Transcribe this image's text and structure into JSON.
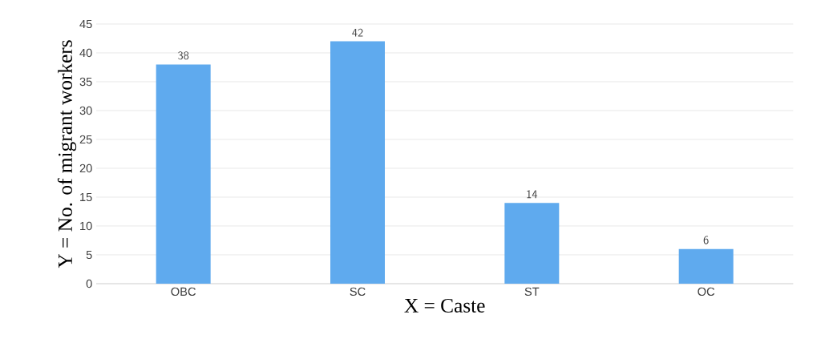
{
  "chart_data": {
    "type": "bar",
    "xlabel": "X = Caste",
    "ylabel": "Y = No. of migrant workers",
    "categories": [
      "OBC",
      "SC",
      "ST",
      "OC"
    ],
    "values": [
      38,
      42,
      14,
      6
    ],
    "color": "#5faaee",
    "ylim": [
      0,
      45
    ],
    "yticks": [
      0,
      5,
      10,
      15,
      20,
      25,
      30,
      35,
      40,
      45
    ],
    "grid": "y",
    "data_labels": true
  }
}
